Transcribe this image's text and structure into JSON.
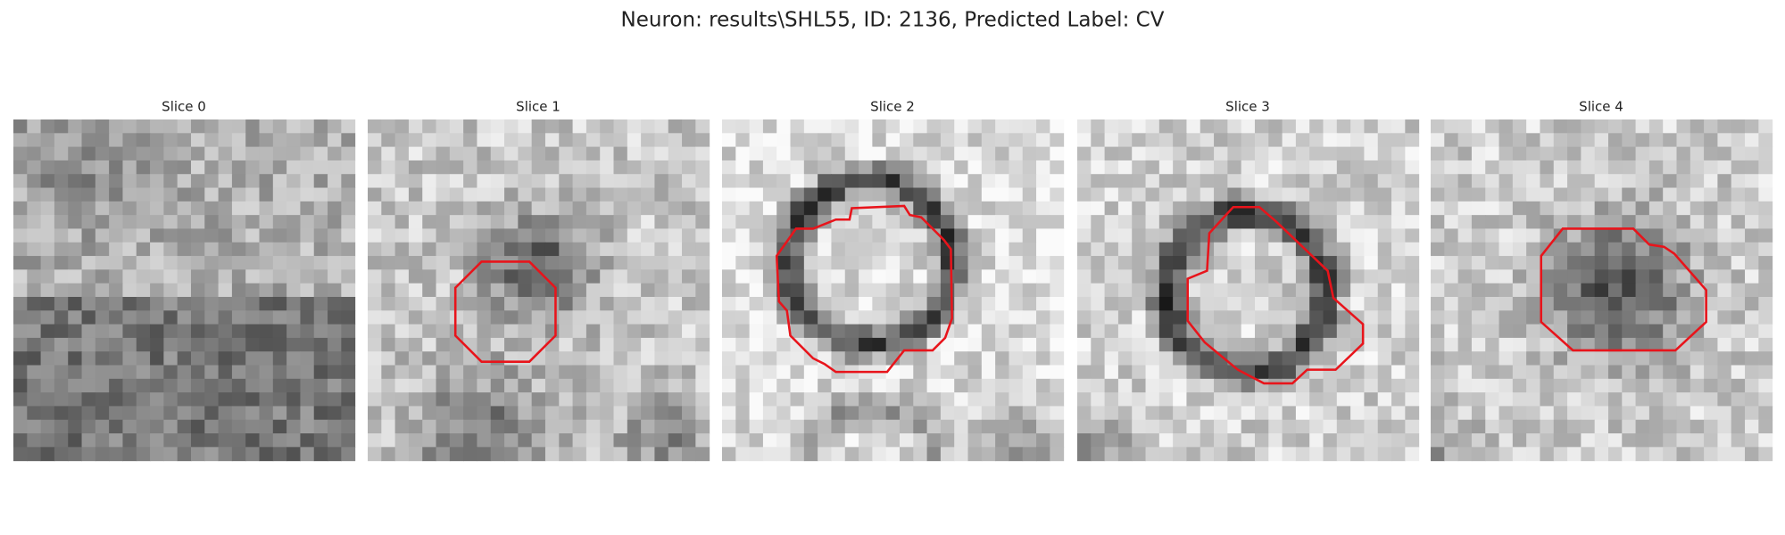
{
  "title": "Neuron: results\\SHL55, ID: 2136, Predicted Label: CV",
  "panels": [
    {
      "title": "Slice 0"
    },
    {
      "title": "Slice 1"
    },
    {
      "title": "Slice 2"
    },
    {
      "title": "Slice 3"
    },
    {
      "title": "Slice 4"
    }
  ]
}
